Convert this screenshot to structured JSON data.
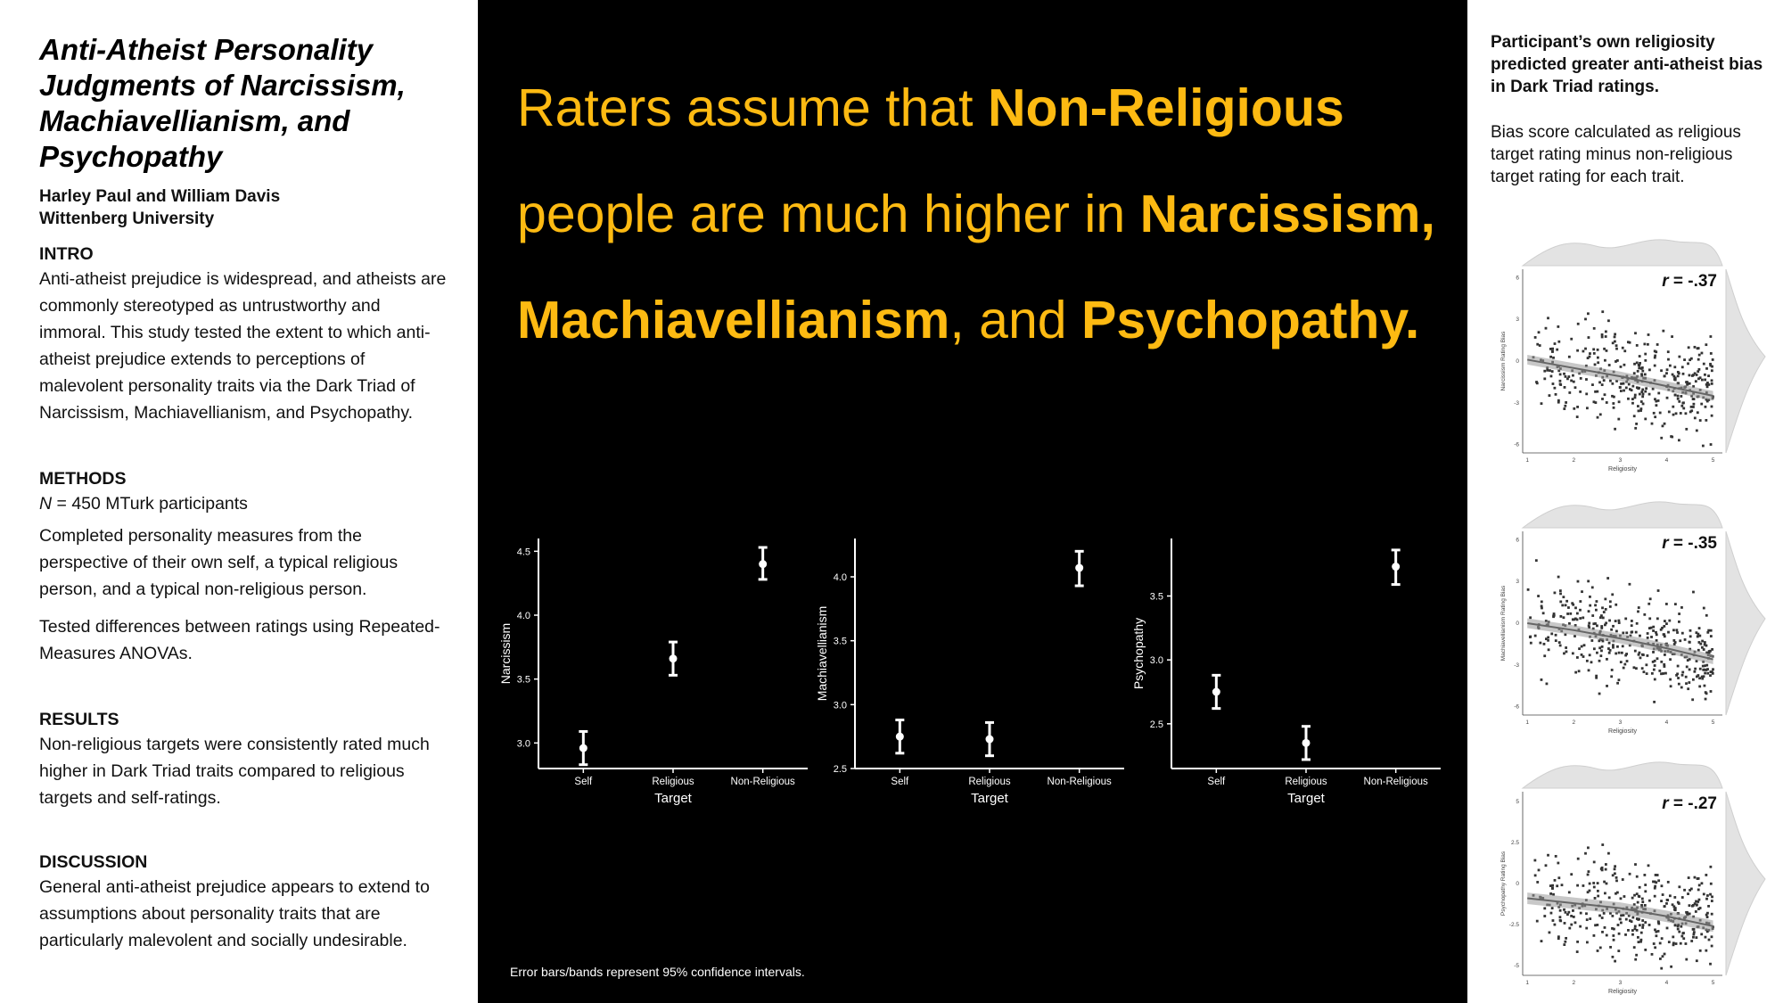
{
  "poster": {
    "title": "Anti-Atheist Personality Judgments of Narcissism, Machiavellianism, and Psychopathy",
    "authors": "Harley Paul and William Davis",
    "affiliation": "Wittenberg University"
  },
  "intro": {
    "heading": "INTRO",
    "text": "Anti-atheist prejudice is widespread, and atheists are commonly stereotyped as untrustworthy and immoral. This study tested the extent to which anti-atheist prejudice extends to perceptions of malevolent personality traits via the Dark Triad of Narcissism, Machiavellianism, and Psychopathy."
  },
  "methods": {
    "heading": "METHODS",
    "n_label": "N",
    "n_text": " = 450 MTurk participants",
    "p1": "Completed personality measures from the perspective of their own self, a typical religious person, and a typical non-religious person.",
    "p2": "Tested differences between ratings using Repeated-Measures ANOVAs."
  },
  "results": {
    "heading": "RESULTS",
    "text": "Non-religious targets were consistently rated much higher in Dark Triad traits compared to religious targets and self-ratings."
  },
  "discussion": {
    "heading": "DISCUSSION",
    "text": "General anti-atheist prejudice appears to extend to assumptions about personality traits that are particularly malevolent and socially undesirable."
  },
  "headline": {
    "l1a": "Raters assume that ",
    "l1b": "Non-Religious",
    "l2a": "people are much higher in ",
    "l2b": "Narcissism,",
    "l3a": "Machiavellianism",
    "l3b": ", and ",
    "l3c": "Psychopathy."
  },
  "footnote": "Error bars/bands represent 95% confidence intervals.",
  "right": {
    "title": "Participant’s own religiosity predicted greater anti-atheist bias in Dark Triad ratings.",
    "note": "Bias score calculated as religious target rating minus non-religious target rating for each trait."
  },
  "chart_data": [
    {
      "type": "scatter",
      "title": "",
      "xlabel": "Target",
      "ylabel": "Narcissism",
      "categories": [
        "Self",
        "Religious",
        "Non-Religious"
      ],
      "values": [
        2.96,
        3.66,
        4.4
      ],
      "ci_low": [
        2.83,
        3.53,
        4.28
      ],
      "ci_high": [
        3.09,
        3.79,
        4.53
      ],
      "yticks": [
        3.0,
        3.5,
        4.0,
        4.5
      ],
      "ylim": [
        2.8,
        4.6
      ]
    },
    {
      "type": "scatter",
      "title": "",
      "xlabel": "Target",
      "ylabel": "Machiavellianism",
      "categories": [
        "Self",
        "Religious",
        "Non-Religious"
      ],
      "values": [
        2.75,
        2.73,
        4.07
      ],
      "ci_low": [
        2.62,
        2.6,
        3.93
      ],
      "ci_high": [
        2.88,
        2.86,
        4.2
      ],
      "yticks": [
        2.5,
        3.0,
        3.5,
        4.0
      ],
      "ylim": [
        2.5,
        4.3
      ]
    },
    {
      "type": "scatter",
      "title": "",
      "xlabel": "Target",
      "ylabel": "Psychopathy",
      "categories": [
        "Self",
        "Religious",
        "Non-Religious"
      ],
      "values": [
        2.75,
        2.35,
        3.73
      ],
      "ci_low": [
        2.62,
        2.22,
        3.59
      ],
      "ci_high": [
        2.88,
        2.48,
        3.86
      ],
      "yticks": [
        2.5,
        3.0,
        3.5
      ],
      "ylim": [
        2.15,
        3.95
      ]
    },
    {
      "type": "scatter",
      "title": "",
      "xlabel": "Religiosity",
      "ylabel": "Narcissism Rating Bias",
      "annotation": "r = -.37",
      "r_label": "r",
      "r_value": " = -.37",
      "xticks": [
        1,
        2,
        3,
        4,
        5
      ],
      "yticks": [
        6,
        3,
        0,
        -3,
        -6
      ],
      "xlim": [
        0.9,
        5.2
      ],
      "ylim": [
        -6.6,
        6.6
      ],
      "trend": [
        [
          1,
          0.1
        ],
        [
          2,
          -0.5
        ],
        [
          3,
          -1.1
        ],
        [
          4,
          -1.8
        ],
        [
          5,
          -2.5
        ]
      ]
    },
    {
      "type": "scatter",
      "title": "",
      "xlabel": "Religiosity",
      "ylabel": "Machiavellianism Rating Bias",
      "annotation": "r = -.35",
      "r_label": "r",
      "r_value": " = -.35",
      "xticks": [
        1,
        2,
        3,
        4,
        5
      ],
      "yticks": [
        6,
        3,
        0,
        -3,
        -6
      ],
      "xlim": [
        0.9,
        5.2
      ],
      "ylim": [
        -6.6,
        6.6
      ],
      "trend": [
        [
          1,
          0.0
        ],
        [
          2,
          -0.5
        ],
        [
          3,
          -1.1
        ],
        [
          4,
          -1.8
        ],
        [
          5,
          -2.6
        ]
      ]
    },
    {
      "type": "scatter",
      "title": "",
      "xlabel": "Religiosity",
      "ylabel": "Psychopathy Rating Bias",
      "annotation": "r = -.27",
      "r_label": "r",
      "r_value": " = -.27",
      "xticks": [
        1,
        2,
        3,
        4,
        5
      ],
      "yticks": [
        5.0,
        2.5,
        0.0,
        -2.5,
        -5.0
      ],
      "xlim": [
        0.9,
        5.2
      ],
      "ylim": [
        -5.6,
        5.6
      ],
      "trend": [
        [
          1,
          -0.9
        ],
        [
          2,
          -1.2
        ],
        [
          3,
          -1.5
        ],
        [
          4,
          -2.0
        ],
        [
          5,
          -2.6
        ]
      ]
    }
  ]
}
